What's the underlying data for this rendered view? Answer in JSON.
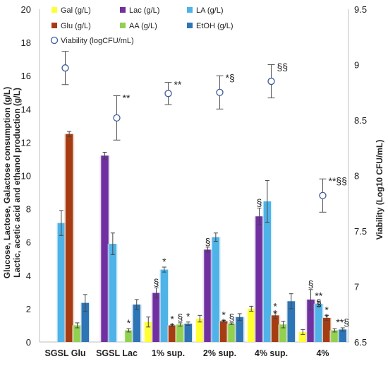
{
  "chart_data": {
    "type": "bar",
    "categories": [
      "SGSL Glu",
      "SGSL Lac",
      "1% sup.",
      "2% sup.",
      "4% sup.",
      "4%"
    ],
    "ylabel_left": [
      "Glucose, Lactose, Galactose consumption (g/L)",
      "Lactic, acetic acid and ethanol production (g/L)"
    ],
    "ylabel_right": "Viability (Log10 CFU/mL)",
    "ylim_left": [
      0,
      20
    ],
    "yticks_left": [
      0,
      2,
      4,
      6,
      8,
      10,
      12,
      14,
      16,
      18,
      20
    ],
    "ylim_right": [
      6.5,
      9.5
    ],
    "yticks_right": [
      6.5,
      7,
      7.5,
      8,
      8.5,
      9,
      9.5
    ],
    "ytick_labels_left": [
      "0",
      "2",
      "4",
      "6",
      "8",
      "10",
      "12",
      "14",
      "16",
      "18",
      "20"
    ],
    "ytick_labels_right": [
      "6.5",
      "7",
      "7.5",
      "8",
      "8.5",
      "9",
      "9.5"
    ],
    "legend_position": "top",
    "series": [
      {
        "name": "Gal (g/L)",
        "color": "#ffff33",
        "values": [
          null,
          null,
          1.2,
          1.4,
          2.0,
          0.6
        ],
        "errors": [
          0,
          0,
          0.3,
          0.2,
          0.15,
          0.15
        ]
      },
      {
        "name": "Lac (g/L)",
        "color": "#7030a0",
        "values": [
          null,
          11.2,
          2.95,
          5.55,
          7.55,
          2.55
        ],
        "errors": [
          0,
          0.2,
          0.3,
          0.15,
          0.5,
          0.6
        ]
      },
      {
        "name": "LA (g/L)",
        "color": "#4fb3e8",
        "values": [
          7.15,
          5.9,
          4.35,
          6.3,
          8.45,
          2.3
        ],
        "errors": [
          0.75,
          0.65,
          0.15,
          0.25,
          1.25,
          0.15
        ]
      },
      {
        "name": "Glu (g/L)",
        "color": "#a63d12",
        "values": [
          12.5,
          null,
          1.0,
          1.25,
          1.6,
          1.45
        ],
        "errors": [
          0.15,
          0,
          0.05,
          0.05,
          0.2,
          0.15
        ]
      },
      {
        "name": "AA (g/L)",
        "color": "#92d050",
        "values": [
          1.0,
          0.7,
          1.05,
          1.1,
          1.05,
          0.7
        ],
        "errors": [
          0.15,
          0.1,
          0.1,
          0.05,
          0.2,
          0.1
        ]
      },
      {
        "name": "EtOH (g/L)",
        "color": "#2e75b6",
        "values": [
          2.35,
          2.25,
          1.1,
          1.5,
          2.45,
          0.75
        ],
        "errors": [
          0.5,
          0.3,
          0.1,
          0.2,
          0.45,
          0.1
        ]
      }
    ],
    "viability": {
      "name": "Viability (logCFU/mL)",
      "values": [
        8.97,
        8.52,
        8.74,
        8.75,
        8.85,
        7.82
      ],
      "errors": [
        0.15,
        0.2,
        0.1,
        0.15,
        0.15,
        0.15
      ]
    },
    "annotations": [
      {
        "text": "**",
        "category": 1,
        "series": "viability"
      },
      {
        "text": "**",
        "category": 2,
        "series": "viability"
      },
      {
        "text": "*§",
        "category": 3,
        "series": "viability"
      },
      {
        "text": "§§",
        "category": 4,
        "series": "viability"
      },
      {
        "text": "**§§",
        "category": 5,
        "series": "viability"
      },
      {
        "text": "*",
        "category": 1,
        "series": 4
      },
      {
        "text": "§",
        "category": 2,
        "series": 1
      },
      {
        "text": "*",
        "category": 2,
        "series": 2
      },
      {
        "text": "*",
        "category": 2,
        "series": 3
      },
      {
        "text": "*",
        "category": 2,
        "series": 3,
        "line": 2
      },
      {
        "text": "§",
        "category": 2,
        "series": 4
      },
      {
        "text": "*",
        "category": 2,
        "series": 5
      },
      {
        "text": "§",
        "category": 3,
        "series": 1
      },
      {
        "text": "*",
        "category": 3,
        "series": 3
      },
      {
        "text": "*",
        "category": 3,
        "series": 3,
        "line": 2
      },
      {
        "text": "§",
        "category": 3,
        "series": 4
      },
      {
        "text": "§",
        "category": 4,
        "series": 1
      },
      {
        "text": "*",
        "category": 4,
        "series": 3
      },
      {
        "text": "*",
        "category": 4,
        "series": 3,
        "line": 2
      },
      {
        "text": "§",
        "category": 5,
        "series": 1
      },
      {
        "text": "**",
        "category": 5,
        "series": 2
      },
      {
        "text": "§",
        "category": 5,
        "series": 2,
        "line": 2
      },
      {
        "text": "*",
        "category": 5,
        "series": 3
      },
      {
        "text": "*",
        "category": 5,
        "series": 3,
        "line": 2
      },
      {
        "text": "**§",
        "category": 5,
        "series": 5
      }
    ]
  }
}
